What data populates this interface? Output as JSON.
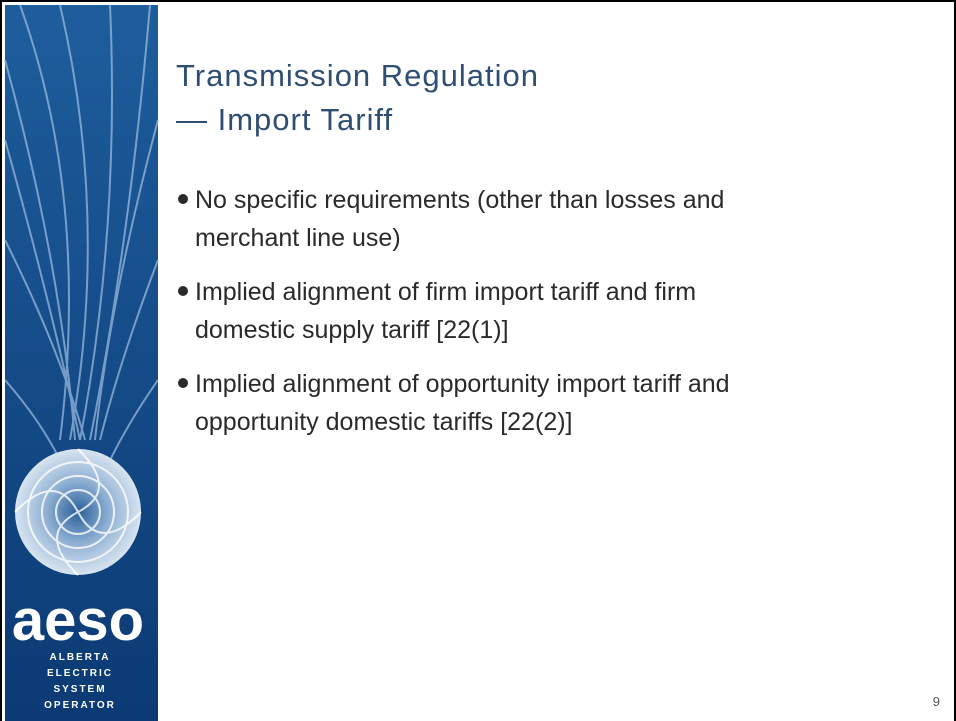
{
  "sidebar": {
    "logo": {
      "wordmark": "aeso",
      "tagline": [
        "ALBERTA",
        "ELECTRIC",
        "SYSTEM",
        "OPERATOR"
      ]
    }
  },
  "title": {
    "lines": [
      "Transmission Regulation",
      "— Import Tariff"
    ]
  },
  "bullets": [
    {
      "lines": [
        "No specific requirements (other than losses and",
        "merchant line use)"
      ]
    },
    {
      "lines": [
        "Implied alignment of firm import tariff and firm",
        "domestic supply tariff [22(1)]"
      ]
    },
    {
      "lines": [
        "Implied alignment of opportunity import tariff and",
        "opportunity domestic tariffs [22(2)]"
      ]
    }
  ],
  "page_number": "9"
}
